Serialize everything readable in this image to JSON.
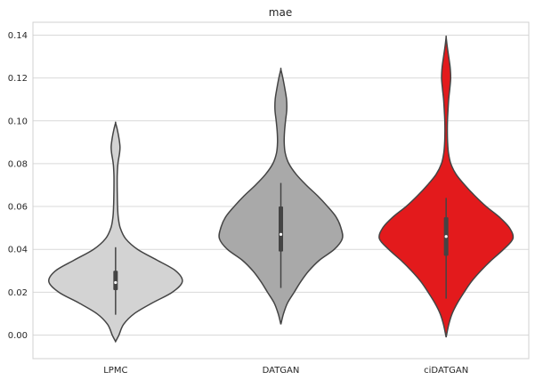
{
  "chart_data": {
    "type": "violin",
    "title": "mae",
    "xlabel": "",
    "ylabel": "",
    "ylim": [
      -0.011,
      0.146
    ],
    "yticks": [
      0.0,
      0.02,
      0.04,
      0.06,
      0.08,
      0.1,
      0.12,
      0.14
    ],
    "ytick_labels": [
      "0.00",
      "0.02",
      "0.04",
      "0.06",
      "0.08",
      "0.10",
      "0.12",
      "0.14"
    ],
    "grid": true,
    "categories": [
      "LPMC",
      "DATGAN",
      "ciDATGAN"
    ],
    "series": [
      {
        "category": "LPMC",
        "color": "#d3d3d3",
        "median": 0.0245,
        "q1": 0.021,
        "q3": 0.03,
        "whisker_low": 0.0095,
        "whisker_high": 0.041,
        "density": [
          [
            -0.003,
            0.0
          ],
          [
            0.0,
            0.05
          ],
          [
            0.005,
            0.12
          ],
          [
            0.01,
            0.28
          ],
          [
            0.015,
            0.55
          ],
          [
            0.02,
            0.85
          ],
          [
            0.025,
            1.0
          ],
          [
            0.03,
            0.9
          ],
          [
            0.035,
            0.62
          ],
          [
            0.04,
            0.33
          ],
          [
            0.045,
            0.15
          ],
          [
            0.05,
            0.07
          ],
          [
            0.055,
            0.04
          ],
          [
            0.06,
            0.03
          ],
          [
            0.065,
            0.026
          ],
          [
            0.07,
            0.024
          ],
          [
            0.075,
            0.025
          ],
          [
            0.08,
            0.035
          ],
          [
            0.085,
            0.06
          ],
          [
            0.088,
            0.066
          ],
          [
            0.092,
            0.05
          ],
          [
            0.096,
            0.025
          ],
          [
            0.099,
            0.0
          ]
        ]
      },
      {
        "category": "DATGAN",
        "color": "#a9a9a9",
        "median": 0.047,
        "q1": 0.039,
        "q3": 0.06,
        "whisker_low": 0.022,
        "whisker_high": 0.071,
        "density": [
          [
            0.005,
            0.0
          ],
          [
            0.01,
            0.04
          ],
          [
            0.015,
            0.1
          ],
          [
            0.02,
            0.2
          ],
          [
            0.025,
            0.3
          ],
          [
            0.03,
            0.42
          ],
          [
            0.035,
            0.58
          ],
          [
            0.04,
            0.8
          ],
          [
            0.045,
            0.92
          ],
          [
            0.05,
            0.9
          ],
          [
            0.055,
            0.83
          ],
          [
            0.06,
            0.7
          ],
          [
            0.065,
            0.55
          ],
          [
            0.07,
            0.38
          ],
          [
            0.075,
            0.23
          ],
          [
            0.08,
            0.12
          ],
          [
            0.085,
            0.065
          ],
          [
            0.09,
            0.05
          ],
          [
            0.095,
            0.055
          ],
          [
            0.1,
            0.07
          ],
          [
            0.105,
            0.088
          ],
          [
            0.11,
            0.085
          ],
          [
            0.115,
            0.06
          ],
          [
            0.12,
            0.03
          ],
          [
            0.124,
            0.0
          ]
        ]
      },
      {
        "category": "ciDATGAN",
        "color": "#e31a1c",
        "median": 0.046,
        "q1": 0.037,
        "q3": 0.055,
        "whisker_low": 0.017,
        "whisker_high": 0.064,
        "density": [
          [
            -0.001,
            0.0
          ],
          [
            0.005,
            0.04
          ],
          [
            0.01,
            0.09
          ],
          [
            0.015,
            0.17
          ],
          [
            0.02,
            0.27
          ],
          [
            0.025,
            0.38
          ],
          [
            0.03,
            0.52
          ],
          [
            0.035,
            0.68
          ],
          [
            0.04,
            0.86
          ],
          [
            0.045,
            1.0
          ],
          [
            0.05,
            0.95
          ],
          [
            0.055,
            0.8
          ],
          [
            0.06,
            0.6
          ],
          [
            0.065,
            0.43
          ],
          [
            0.07,
            0.28
          ],
          [
            0.075,
            0.15
          ],
          [
            0.08,
            0.07
          ],
          [
            0.085,
            0.035
          ],
          [
            0.09,
            0.022
          ],
          [
            0.095,
            0.018
          ],
          [
            0.1,
            0.02
          ],
          [
            0.105,
            0.028
          ],
          [
            0.11,
            0.038
          ],
          [
            0.115,
            0.055
          ],
          [
            0.12,
            0.068
          ],
          [
            0.125,
            0.06
          ],
          [
            0.13,
            0.038
          ],
          [
            0.135,
            0.015
          ],
          [
            0.139,
            0.0
          ]
        ]
      }
    ]
  }
}
